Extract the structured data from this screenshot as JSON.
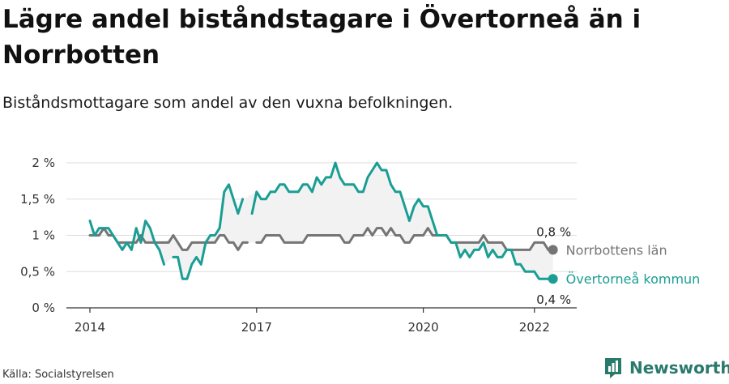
{
  "header": {
    "title": "Lägre andel biståndstagare i Övertorneå än i Norrbotten",
    "subtitle": "Biståndsmottagare som andel av den vuxna befolkningen."
  },
  "footer": {
    "source": "Källa: Socialstyrelsen",
    "brand": "Newsworthy",
    "brand_color": "#2a7a6b"
  },
  "colors": {
    "norrbotten": "#757575",
    "overtornea": "#1a9e94",
    "band": "#f2f2f2",
    "grid": "#dedede",
    "axis": "#333333"
  },
  "chart_data": {
    "type": "line",
    "y_ticks": [
      "0 %",
      "0,5 %",
      "1 %",
      "1,5 %",
      "2 %"
    ],
    "x_ticks": [
      "2014",
      "2017",
      "2020",
      "2022"
    ],
    "ylim": [
      0,
      2
    ],
    "grid": true,
    "series": [
      {
        "name": "Norrbottens län",
        "end_label": "0,8 %",
        "values": [
          [
            "2014-01",
            1.0
          ],
          [
            "2014-02",
            1.0
          ],
          [
            "2014-03",
            1.0
          ],
          [
            "2014-04",
            1.1
          ],
          [
            "2014-05",
            1.0
          ],
          [
            "2014-06",
            1.0
          ],
          [
            "2014-07",
            0.9
          ],
          [
            "2014-08",
            0.9
          ],
          [
            "2014-09",
            0.9
          ],
          [
            "2014-10",
            0.9
          ],
          [
            "2014-11",
            0.9
          ],
          [
            "2014-12",
            1.0
          ],
          [
            "2015-01",
            0.9
          ],
          [
            "2015-02",
            0.9
          ],
          [
            "2015-03",
            0.9
          ],
          [
            "2015-04",
            0.9
          ],
          [
            "2015-05",
            0.9
          ],
          [
            "2015-06",
            0.9
          ],
          [
            "2015-07",
            1.0
          ],
          [
            "2015-08",
            0.9
          ],
          [
            "2015-09",
            0.8
          ],
          [
            "2015-10",
            0.8
          ],
          [
            "2015-11",
            0.9
          ],
          [
            "2015-12",
            0.9
          ],
          [
            "2016-01",
            0.9
          ],
          [
            "2016-02",
            0.9
          ],
          [
            "2016-03",
            0.9
          ],
          [
            "2016-04",
            0.9
          ],
          [
            "2016-05",
            1.0
          ],
          [
            "2016-06",
            1.0
          ],
          [
            "2016-07",
            0.9
          ],
          [
            "2016-08",
            0.9
          ],
          [
            "2016-09",
            0.8
          ],
          [
            "2016-10",
            0.9
          ],
          [
            "2016-11",
            0.9
          ],
          [
            "2016-12",
            null
          ],
          [
            "2017-01",
            0.9
          ],
          [
            "2017-02",
            0.9
          ],
          [
            "2017-03",
            1.0
          ],
          [
            "2017-04",
            1.0
          ],
          [
            "2017-05",
            1.0
          ],
          [
            "2017-06",
            1.0
          ],
          [
            "2017-07",
            0.9
          ],
          [
            "2017-08",
            0.9
          ],
          [
            "2017-09",
            0.9
          ],
          [
            "2017-10",
            0.9
          ],
          [
            "2017-11",
            0.9
          ],
          [
            "2017-12",
            1.0
          ],
          [
            "2018-01",
            1.0
          ],
          [
            "2018-02",
            1.0
          ],
          [
            "2018-03",
            1.0
          ],
          [
            "2018-04",
            1.0
          ],
          [
            "2018-05",
            1.0
          ],
          [
            "2018-06",
            1.0
          ],
          [
            "2018-07",
            1.0
          ],
          [
            "2018-08",
            0.9
          ],
          [
            "2018-09",
            0.9
          ],
          [
            "2018-10",
            1.0
          ],
          [
            "2018-11",
            1.0
          ],
          [
            "2018-12",
            1.0
          ],
          [
            "2019-01",
            1.1
          ],
          [
            "2019-02",
            1.0
          ],
          [
            "2019-03",
            1.1
          ],
          [
            "2019-04",
            1.1
          ],
          [
            "2019-05",
            1.0
          ],
          [
            "2019-06",
            1.1
          ],
          [
            "2019-07",
            1.0
          ],
          [
            "2019-08",
            1.0
          ],
          [
            "2019-09",
            0.9
          ],
          [
            "2019-10",
            0.9
          ],
          [
            "2019-11",
            1.0
          ],
          [
            "2019-12",
            1.0
          ],
          [
            "2020-01",
            1.0
          ],
          [
            "2020-02",
            1.1
          ],
          [
            "2020-03",
            1.0
          ],
          [
            "2020-04",
            1.0
          ],
          [
            "2020-05",
            1.0
          ],
          [
            "2020-06",
            1.0
          ],
          [
            "2020-07",
            0.9
          ],
          [
            "2020-08",
            0.9
          ],
          [
            "2020-09",
            0.9
          ],
          [
            "2020-10",
            0.9
          ],
          [
            "2020-11",
            0.9
          ],
          [
            "2020-12",
            0.9
          ],
          [
            "2021-01",
            0.9
          ],
          [
            "2021-02",
            1.0
          ],
          [
            "2021-03",
            0.9
          ],
          [
            "2021-04",
            0.9
          ],
          [
            "2021-05",
            0.9
          ],
          [
            "2021-06",
            0.9
          ],
          [
            "2021-07",
            0.8
          ],
          [
            "2021-08",
            0.8
          ],
          [
            "2021-09",
            0.8
          ],
          [
            "2021-10",
            0.8
          ],
          [
            "2021-11",
            0.8
          ],
          [
            "2021-12",
            0.8
          ],
          [
            "2022-01",
            0.9
          ],
          [
            "2022-02",
            0.9
          ],
          [
            "2022-03",
            0.9
          ],
          [
            "2022-04",
            0.8
          ],
          [
            "2022-05",
            0.8
          ]
        ]
      },
      {
        "name": "Övertorneå kommun",
        "end_label": "0,4 %",
        "values": [
          [
            "2014-01",
            1.2
          ],
          [
            "2014-02",
            1.0
          ],
          [
            "2014-03",
            1.1
          ],
          [
            "2014-04",
            1.1
          ],
          [
            "2014-05",
            1.1
          ],
          [
            "2014-06",
            1.0
          ],
          [
            "2014-07",
            0.9
          ],
          [
            "2014-08",
            0.8
          ],
          [
            "2014-09",
            0.9
          ],
          [
            "2014-10",
            0.8
          ],
          [
            "2014-11",
            1.1
          ],
          [
            "2014-12",
            0.9
          ],
          [
            "2015-01",
            1.2
          ],
          [
            "2015-02",
            1.1
          ],
          [
            "2015-03",
            0.9
          ],
          [
            "2015-04",
            0.8
          ],
          [
            "2015-05",
            0.6
          ],
          [
            "2015-06",
            null
          ],
          [
            "2015-07",
            0.7
          ],
          [
            "2015-08",
            0.7
          ],
          [
            "2015-09",
            0.4
          ],
          [
            "2015-10",
            0.4
          ],
          [
            "2015-11",
            0.6
          ],
          [
            "2015-12",
            0.7
          ],
          [
            "2016-01",
            0.6
          ],
          [
            "2016-02",
            0.9
          ],
          [
            "2016-03",
            1.0
          ],
          [
            "2016-04",
            1.0
          ],
          [
            "2016-05",
            1.1
          ],
          [
            "2016-06",
            1.6
          ],
          [
            "2016-07",
            1.7
          ],
          [
            "2016-08",
            1.5
          ],
          [
            "2016-09",
            1.3
          ],
          [
            "2016-10",
            1.5
          ],
          [
            "2016-11",
            null
          ],
          [
            "2016-12",
            1.3
          ],
          [
            "2017-01",
            1.6
          ],
          [
            "2017-02",
            1.5
          ],
          [
            "2017-03",
            1.5
          ],
          [
            "2017-04",
            1.6
          ],
          [
            "2017-05",
            1.6
          ],
          [
            "2017-06",
            1.7
          ],
          [
            "2017-07",
            1.7
          ],
          [
            "2017-08",
            1.6
          ],
          [
            "2017-09",
            1.6
          ],
          [
            "2017-10",
            1.6
          ],
          [
            "2017-11",
            1.7
          ],
          [
            "2017-12",
            1.7
          ],
          [
            "2018-01",
            1.6
          ],
          [
            "2018-02",
            1.8
          ],
          [
            "2018-03",
            1.7
          ],
          [
            "2018-04",
            1.8
          ],
          [
            "2018-05",
            1.8
          ],
          [
            "2018-06",
            2.0
          ],
          [
            "2018-07",
            1.8
          ],
          [
            "2018-08",
            1.7
          ],
          [
            "2018-09",
            1.7
          ],
          [
            "2018-10",
            1.7
          ],
          [
            "2018-11",
            1.6
          ],
          [
            "2018-12",
            1.6
          ],
          [
            "2019-01",
            1.8
          ],
          [
            "2019-02",
            1.9
          ],
          [
            "2019-03",
            2.0
          ],
          [
            "2019-04",
            1.9
          ],
          [
            "2019-05",
            1.9
          ],
          [
            "2019-06",
            1.7
          ],
          [
            "2019-07",
            1.6
          ],
          [
            "2019-08",
            1.6
          ],
          [
            "2019-09",
            1.4
          ],
          [
            "2019-10",
            1.2
          ],
          [
            "2019-11",
            1.4
          ],
          [
            "2019-12",
            1.5
          ],
          [
            "2020-01",
            1.4
          ],
          [
            "2020-02",
            1.4
          ],
          [
            "2020-03",
            1.2
          ],
          [
            "2020-04",
            1.0
          ],
          [
            "2020-05",
            1.0
          ],
          [
            "2020-06",
            1.0
          ],
          [
            "2020-07",
            0.9
          ],
          [
            "2020-08",
            0.9
          ],
          [
            "2020-09",
            0.7
          ],
          [
            "2020-10",
            0.8
          ],
          [
            "2020-11",
            0.7
          ],
          [
            "2020-12",
            0.8
          ],
          [
            "2021-01",
            0.8
          ],
          [
            "2021-02",
            0.9
          ],
          [
            "2021-03",
            0.7
          ],
          [
            "2021-04",
            0.8
          ],
          [
            "2021-05",
            0.7
          ],
          [
            "2021-06",
            0.7
          ],
          [
            "2021-07",
            0.8
          ],
          [
            "2021-08",
            0.8
          ],
          [
            "2021-09",
            0.6
          ],
          [
            "2021-10",
            0.6
          ],
          [
            "2021-11",
            0.5
          ],
          [
            "2021-12",
            0.5
          ],
          [
            "2022-01",
            0.5
          ],
          [
            "2022-02",
            0.4
          ],
          [
            "2022-03",
            0.4
          ],
          [
            "2022-04",
            0.4
          ],
          [
            "2022-05",
            0.4
          ]
        ]
      }
    ]
  }
}
